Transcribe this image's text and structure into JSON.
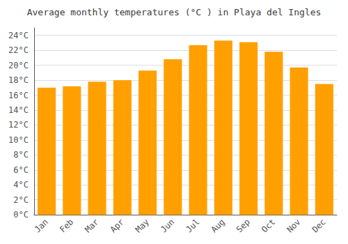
{
  "chart_data": {
    "type": "bar",
    "title": "Average monthly temperatures (°C ) in Playa del Ingles",
    "categories": [
      "Jan",
      "Feb",
      "Mar",
      "Apr",
      "May",
      "Jun",
      "Jul",
      "Aug",
      "Sep",
      "Oct",
      "Nov",
      "Dec"
    ],
    "values": [
      17.0,
      17.2,
      17.8,
      18.0,
      19.3,
      20.8,
      22.7,
      23.3,
      23.1,
      21.8,
      19.7,
      17.5
    ],
    "color": "#FFA000",
    "ylim": [
      0,
      25
    ],
    "yticks": [
      {
        "value": 0,
        "label": "0°C"
      },
      {
        "value": 2,
        "label": "2°C"
      },
      {
        "value": 4,
        "label": "4°C"
      },
      {
        "value": 6,
        "label": "6°C"
      },
      {
        "value": 8,
        "label": "8°C"
      },
      {
        "value": 10,
        "label": "10°C"
      },
      {
        "value": 12,
        "label": "12°C"
      },
      {
        "value": 14,
        "label": "14°C"
      },
      {
        "value": 16,
        "label": "16°C"
      },
      {
        "value": 18,
        "label": "18°C"
      },
      {
        "value": 20,
        "label": "20°C"
      },
      {
        "value": 22,
        "label": "22°C"
      },
      {
        "value": 24,
        "label": "24°C"
      }
    ],
    "grid": true
  }
}
